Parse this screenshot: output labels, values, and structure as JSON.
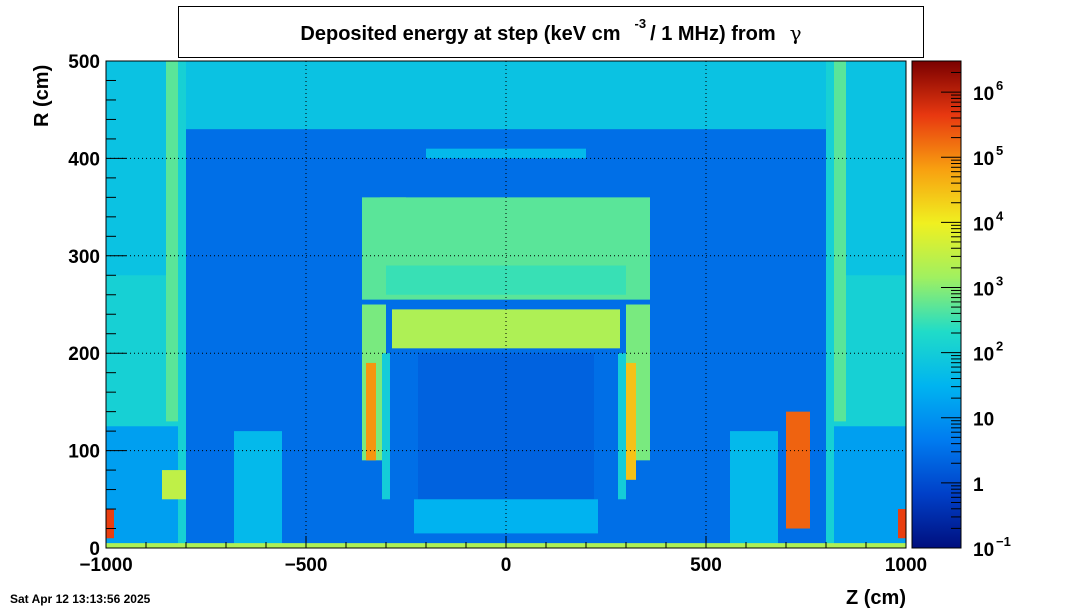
{
  "chart_data": {
    "type": "heatmap",
    "title": "Deposited energy at step (keV cm",
    "title_exponent": "-3",
    "title_tail": "/ 1 MHz)  from",
    "title_particle": "γ",
    "xlabel": "Z (cm)",
    "ylabel": "R (cm)",
    "xlim": [
      -1000,
      1000
    ],
    "ylim": [
      0,
      500
    ],
    "x_ticks": [
      -1000,
      -500,
      0,
      500,
      1000
    ],
    "x_tick_labels": [
      "−1000",
      "−500",
      "0",
      "500",
      "1000"
    ],
    "y_ticks": [
      0,
      100,
      200,
      300,
      400,
      500
    ],
    "y_tick_labels": [
      "0",
      "100",
      "200",
      "300",
      "400",
      "500"
    ],
    "grid": true,
    "colorbar": {
      "scale": "log",
      "range": [
        0.1,
        3000000
      ],
      "ticks": [
        0.1,
        1,
        10,
        100,
        1000,
        10000,
        100000,
        1000000
      ],
      "tick_labels": [
        {
          "base": "10",
          "exp": "−1"
        },
        {
          "base": "1",
          "exp": ""
        },
        {
          "base": "10",
          "exp": ""
        },
        {
          "base": "10",
          "exp": "2"
        },
        {
          "base": "10",
          "exp": "3"
        },
        {
          "base": "10",
          "exp": "4"
        },
        {
          "base": "10",
          "exp": "5"
        },
        {
          "base": "10",
          "exp": "6"
        }
      ],
      "colors": [
        "#000f7e",
        "#0040c8",
        "#007cf0",
        "#00b4f0",
        "#20dcc8",
        "#a0f060",
        "#f0f020",
        "#f8a010",
        "#e83810",
        "#7a0000"
      ]
    },
    "background_value": 3,
    "regions": [
      {
        "z": [
          -800,
          800
        ],
        "r": [
          430,
          500
        ],
        "value": 60
      },
      {
        "z": [
          -1000,
          -800
        ],
        "r": [
          0,
          500
        ],
        "value": 120
      },
      {
        "z": [
          800,
          1000
        ],
        "r": [
          0,
          500
        ],
        "value": 120
      },
      {
        "z": [
          -1000,
          -820
        ],
        "r": [
          0,
          125
        ],
        "value": 15
      },
      {
        "z": [
          820,
          1000
        ],
        "r": [
          0,
          125
        ],
        "value": 15
      },
      {
        "z": [
          -1000,
          -830
        ],
        "r": [
          280,
          500
        ],
        "value": 60
      },
      {
        "z": [
          830,
          1000
        ],
        "r": [
          280,
          500
        ],
        "value": 60
      },
      {
        "z": [
          -850,
          -820
        ],
        "r": [
          130,
          500
        ],
        "value": 500
      },
      {
        "z": [
          820,
          850
        ],
        "r": [
          130,
          500
        ],
        "value": 500
      },
      {
        "z": [
          -1000,
          -980
        ],
        "r": [
          10,
          40
        ],
        "value": 400000
      },
      {
        "z": [
          980,
          1000
        ],
        "r": [
          10,
          40
        ],
        "value": 400000
      },
      {
        "z": [
          -860,
          -800
        ],
        "r": [
          50,
          80
        ],
        "value": 3000
      },
      {
        "z": [
          -315,
          -250
        ],
        "r": [
          340,
          360
        ],
        "value": 1000
      },
      {
        "z": [
          -360,
          360
        ],
        "r": [
          255,
          360
        ],
        "value": 500
      },
      {
        "z": [
          -300,
          300
        ],
        "r": [
          260,
          290
        ],
        "value": 300
      },
      {
        "z": [
          -360,
          -300
        ],
        "r": [
          90,
          250
        ],
        "value": 800
      },
      {
        "z": [
          300,
          360
        ],
        "r": [
          90,
          250
        ],
        "value": 800
      },
      {
        "z": [
          -350,
          -325
        ],
        "r": [
          90,
          190
        ],
        "value": 80000
      },
      {
        "z": [
          300,
          325
        ],
        "r": [
          70,
          190
        ],
        "value": 30000
      },
      {
        "z": [
          -285,
          285
        ],
        "r": [
          205,
          245
        ],
        "value": 2000
      },
      {
        "z": [
          -220,
          220
        ],
        "r": [
          50,
          200
        ],
        "value": 2
      },
      {
        "z": [
          -200,
          200
        ],
        "r": [
          400,
          410
        ],
        "value": 40
      },
      {
        "z": [
          -310,
          -290
        ],
        "r": [
          50,
          200
        ],
        "value": 100
      },
      {
        "z": [
          280,
          300
        ],
        "r": [
          50,
          200
        ],
        "value": 100
      },
      {
        "z": [
          -230,
          230
        ],
        "r": [
          15,
          50
        ],
        "value": 30
      },
      {
        "z": [
          700,
          760
        ],
        "r": [
          20,
          140
        ],
        "value": 200000
      },
      {
        "z": [
          -680,
          -560
        ],
        "r": [
          0,
          120
        ],
        "value": 40
      },
      {
        "z": [
          560,
          680
        ],
        "r": [
          0,
          120
        ],
        "value": 40
      },
      {
        "z": [
          -1000,
          1000
        ],
        "r": [
          0,
          5
        ],
        "value": 2000
      }
    ]
  },
  "footer": {
    "date": "Sat Apr 12 13:13:56 2025"
  }
}
